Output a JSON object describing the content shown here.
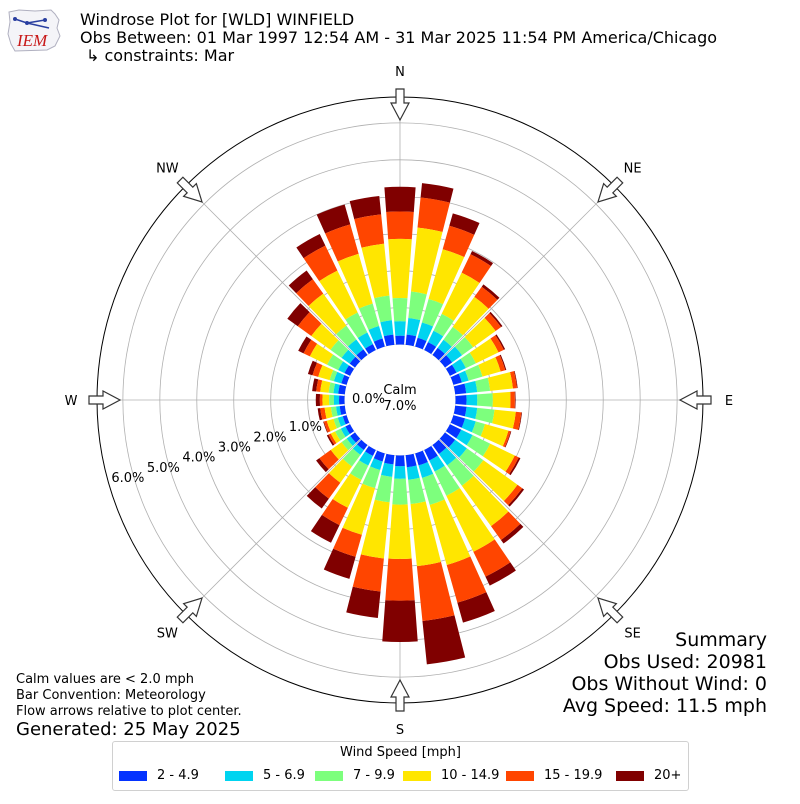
{
  "header": {
    "title": "Windrose Plot for [WLD] WINFIELD",
    "period": "Obs Between: 01 Mar 1997 12:54 AM - 31 Mar 2025 11:54 PM America/Chicago",
    "constraints": "↳ constraints: Mar"
  },
  "logo": {
    "text": "IEM"
  },
  "summary": {
    "title": "Summary",
    "obs_used": "Obs Used: 20981",
    "obs_without_wind": "Obs Without Wind: 0",
    "avg_speed": "Avg Speed: 11.5 mph"
  },
  "notes": {
    "calm_note": "Calm values are < 2.0 mph",
    "convention": "Bar Convention: Meteorology",
    "flow": "Flow arrows relative to plot center.",
    "generated": "Generated: 25 May 2025"
  },
  "center": {
    "calm_label": "Calm",
    "calm_value": "7.0%",
    "zero_label": "0.0%"
  },
  "chart_data": {
    "type": "windrose",
    "calm_percent": 7.0,
    "directions_deg": [
      0,
      10,
      20,
      30,
      40,
      50,
      60,
      70,
      80,
      90,
      100,
      110,
      120,
      130,
      140,
      150,
      160,
      170,
      180,
      190,
      200,
      210,
      220,
      230,
      240,
      250,
      260,
      270,
      280,
      290,
      300,
      310,
      320,
      330,
      340,
      350
    ],
    "compass_labels": [
      {
        "label": "N",
        "deg": 0
      },
      {
        "label": "NE",
        "deg": 45
      },
      {
        "label": "E",
        "deg": 90
      },
      {
        "label": "SE",
        "deg": 135
      },
      {
        "label": "S",
        "deg": 180
      },
      {
        "label": "SW",
        "deg": 225
      },
      {
        "label": "W",
        "deg": 270
      },
      {
        "label": "NW",
        "deg": 315
      }
    ],
    "radial_ticks": [
      "1.0%",
      "2.0%",
      "3.0%",
      "4.0%",
      "5.0%",
      "6.0%"
    ],
    "speed_bins": [
      {
        "name": "2 - 4.9",
        "color": "#0433ff"
      },
      {
        "name": "5 - 6.9",
        "color": "#00d4f0"
      },
      {
        "name": "7 - 9.9",
        "color": "#7dff7d"
      },
      {
        "name": "10 - 14.9",
        "color": "#ffe600"
      },
      {
        "name": "15 - 19.9",
        "color": "#ff4500"
      },
      {
        "name": "20+",
        "color": "#800000"
      }
    ],
    "cumulative_percent": [
      [
        0.24,
        0.63,
        1.26,
        2.86,
        3.6,
        4.27
      ],
      [
        0.28,
        0.73,
        1.45,
        3.19,
        4.01,
        4.4
      ],
      [
        0.25,
        0.68,
        1.34,
        2.74,
        3.4,
        3.75
      ],
      [
        0.24,
        0.58,
        1.09,
        2.33,
        2.88,
        2.98
      ],
      [
        0.24,
        0.51,
        0.94,
        1.94,
        2.28,
        2.36
      ],
      [
        0.24,
        0.57,
        0.94,
        1.69,
        1.87,
        1.92
      ],
      [
        0.2,
        0.48,
        0.78,
        1.46,
        1.62,
        1.66
      ],
      [
        0.24,
        0.43,
        0.82,
        1.33,
        1.46,
        1.49
      ],
      [
        0.3,
        0.6,
        0.95,
        1.57,
        1.68,
        1.7
      ],
      [
        0.3,
        0.59,
        1.01,
        1.49,
        1.61,
        1.63
      ],
      [
        0.31,
        0.6,
        1.07,
        1.65,
        1.8,
        1.82
      ],
      [
        0.33,
        0.63,
        0.89,
        1.55,
        1.61,
        1.63
      ],
      [
        0.34,
        0.68,
        1.21,
        1.95,
        2.07,
        2.12
      ],
      [
        0.34,
        0.73,
        1.28,
        2.42,
        2.58,
        2.64
      ],
      [
        0.3,
        0.68,
        1.36,
        2.71,
        3.17,
        3.29
      ],
      [
        0.32,
        0.65,
        1.38,
        3.06,
        3.81,
        4.08
      ],
      [
        0.34,
        0.69,
        1.45,
        3.14,
        4.2,
        4.76
      ],
      [
        0.33,
        0.67,
        1.33,
        3.02,
        4.51,
        5.69
      ],
      [
        0.29,
        0.63,
        1.33,
        2.8,
        3.93,
        5.05
      ],
      [
        0.25,
        0.59,
        1.28,
        2.81,
        3.71,
        4.43
      ],
      [
        0.23,
        0.47,
        0.98,
        2.29,
        2.91,
        3.53
      ],
      [
        0.18,
        0.47,
        0.9,
        1.74,
        2.26,
        2.79
      ],
      [
        0.17,
        0.33,
        0.72,
        1.26,
        1.79,
        2.12
      ],
      [
        0.16,
        0.28,
        0.45,
        0.81,
        1.19,
        1.3
      ],
      [
        0.14,
        0.28,
        0.45,
        0.58,
        0.65,
        0.7
      ],
      [
        0.11,
        0.25,
        0.37,
        0.56,
        0.64,
        0.66
      ],
      [
        0.14,
        0.24,
        0.38,
        0.55,
        0.67,
        0.74
      ],
      [
        0.15,
        0.29,
        0.42,
        0.6,
        0.67,
        0.78
      ],
      [
        0.18,
        0.31,
        0.44,
        0.67,
        0.78,
        0.89
      ],
      [
        0.15,
        0.36,
        0.48,
        0.8,
        0.96,
        1.09
      ],
      [
        0.17,
        0.36,
        0.69,
        1.21,
        1.4,
        1.56
      ],
      [
        0.18,
        0.45,
        0.82,
        1.46,
        1.91,
        2.26
      ],
      [
        0.19,
        0.52,
        0.98,
        2.05,
        2.53,
        2.82
      ],
      [
        0.18,
        0.53,
        1.13,
        2.39,
        3.14,
        3.49
      ],
      [
        0.23,
        0.58,
        1.21,
        2.61,
        3.44,
        4.0
      ],
      [
        0.28,
        0.67,
        1.34,
        2.75,
        3.55,
        4.05
      ]
    ],
    "rlim": [
      -1.5,
      6.7
    ],
    "grid": true,
    "legend_title": "Wind Speed [mph]",
    "legend_position": "bottom"
  }
}
